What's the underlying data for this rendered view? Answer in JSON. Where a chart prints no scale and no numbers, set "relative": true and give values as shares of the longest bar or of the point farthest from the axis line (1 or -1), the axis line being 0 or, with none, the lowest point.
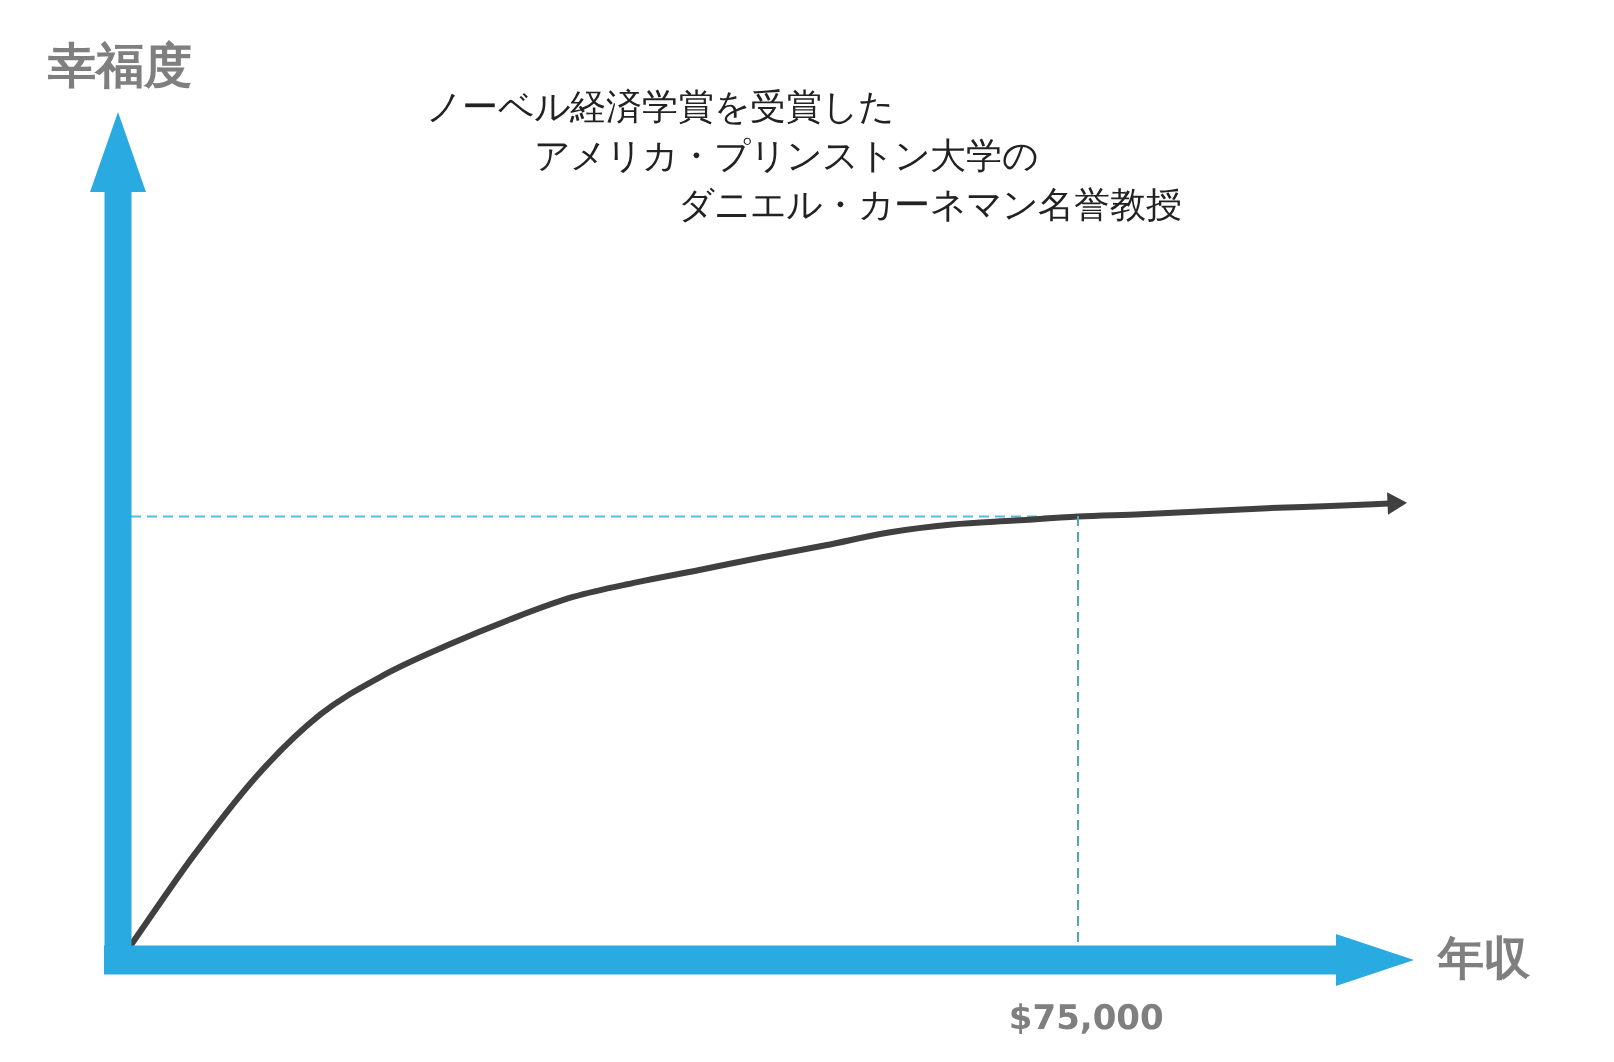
{
  "chart_data": {
    "type": "line",
    "annotations": [
      "幸福度",
      "ノーベル経済学賞を受賞した",
      "アメリカ・プリンストン大学の",
      "ダニエル・カーネマン名誉教授",
      "$75,000"
    ],
    "xlabel": "年収",
    "categories": [
      null,
      null,
      null,
      null,
      null,
      null,
      null,
      null,
      null,
      null,
      null,
      null,
      null,
      null,
      null,
      null,
      null,
      null,
      null,
      null,
      null
    ],
    "relative": true,
    "series": [
      {
        "color": "#404040",
        "values": [
          0,
          0.204,
          0.384,
          0.522,
          0.611,
          0.678,
          0.737,
          0.788,
          0.821,
          0.849,
          0.878,
          0.905,
          0.934,
          0.952,
          0.961,
          0.97,
          0.975,
          0.982,
          0.989,
          0.994,
          1
        ]
      }
    ],
    "ref_lines": [
      {
        "axis": "y",
        "value": 0.97,
        "color": "#5bb8e0",
        "line_style": "dashed"
      }
    ],
    "legend": false,
    "marker": "none",
    "line_style": "solid"
  }
}
